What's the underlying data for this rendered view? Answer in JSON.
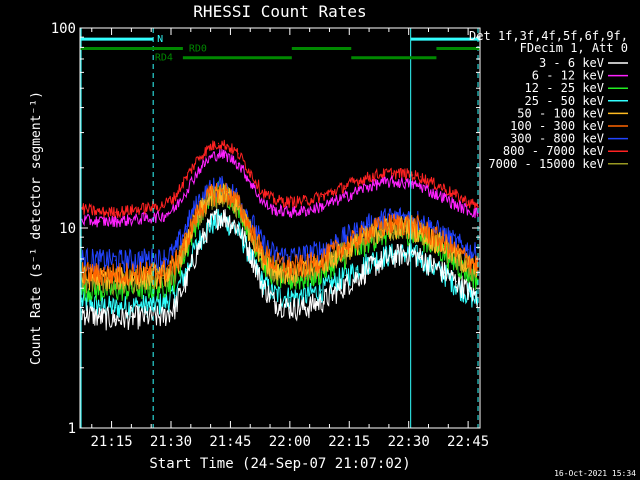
{
  "chart_data": {
    "type": "line",
    "title": "RHESSI Count Rates",
    "xlabel": "Start Time (24-Sep-07 21:07:02)",
    "ylabel": "Count Rate (s⁻¹ detector segment⁻¹)",
    "x_unit": "minutes after 21:00",
    "xlim": [
      7.03,
      108.0
    ],
    "ylim": [
      1,
      100
    ],
    "y_scale": "log",
    "x_ticks": [
      {
        "value": 15,
        "label": "21:15"
      },
      {
        "value": 30,
        "label": "21:30"
      },
      {
        "value": 45,
        "label": "21:45"
      },
      {
        "value": 60,
        "label": "22:00"
      },
      {
        "value": 75,
        "label": "22:15"
      },
      {
        "value": 90,
        "label": "22:30"
      },
      {
        "value": 105,
        "label": "22:45"
      }
    ],
    "y_ticks": [
      {
        "value": 1,
        "label": "1"
      },
      {
        "value": 10,
        "label": "10"
      },
      {
        "value": 100,
        "label": "100"
      }
    ],
    "legend_title": [
      "Det 1f,3f,4f,5f,6f,9f,",
      "FDecim 1, Att 0"
    ],
    "legend_position": "right",
    "footer_timestamp": "16-Oct-2021 15:34",
    "x": [
      7.5,
      12,
      16,
      20,
      24,
      28,
      31,
      34,
      37,
      40,
      42,
      44,
      47,
      50,
      53,
      56,
      60,
      64,
      68,
      71,
      74,
      77,
      80,
      83,
      86,
      89,
      91,
      93,
      96,
      99,
      102,
      105,
      107.5
    ],
    "series": [
      {
        "name": "3 - 6 keV",
        "color": "#ffffff",
        "values": [
          3.8,
          3.6,
          3.5,
          3.6,
          3.6,
          3.6,
          4.0,
          5.5,
          8.0,
          10.5,
          11.5,
          11.3,
          10.0,
          7.5,
          5.2,
          4.3,
          4.0,
          4.0,
          4.3,
          4.7,
          5.2,
          5.7,
          6.3,
          6.8,
          7.2,
          7.5,
          7.4,
          7.1,
          6.5,
          6.0,
          5.4,
          4.9,
          4.5
        ]
      },
      {
        "name": "6 - 12 keV",
        "color": "#ff22ff",
        "values": [
          11.0,
          10.8,
          10.8,
          11.0,
          11.2,
          11.5,
          12.5,
          15.5,
          19.5,
          22.5,
          23.5,
          23.0,
          21.0,
          17.0,
          13.5,
          12.3,
          12.0,
          12.2,
          12.8,
          13.5,
          14.3,
          15.3,
          16.2,
          16.8,
          17.0,
          16.8,
          16.5,
          16.2,
          15.0,
          14.2,
          13.0,
          12.3,
          11.8
        ]
      },
      {
        "name": "12 - 25 keV",
        "color": "#22ee22",
        "values": [
          5.0,
          4.9,
          4.9,
          5.0,
          5.0,
          5.1,
          5.6,
          7.8,
          11.5,
          14.2,
          15.2,
          14.8,
          13.0,
          9.5,
          6.8,
          5.8,
          5.5,
          5.6,
          6.0,
          6.6,
          7.2,
          7.8,
          8.6,
          9.2,
          9.5,
          9.6,
          9.4,
          9.0,
          8.2,
          7.5,
          6.6,
          6.0,
          5.5
        ]
      },
      {
        "name": "25 - 50 keV",
        "color": "#33ffff",
        "values": [
          4.3,
          4.1,
          4.0,
          4.1,
          4.1,
          4.2,
          4.6,
          6.2,
          8.6,
          10.4,
          11.0,
          10.8,
          9.6,
          7.2,
          5.4,
          4.7,
          4.5,
          4.6,
          4.9,
          5.3,
          5.8,
          6.2,
          6.8,
          7.2,
          7.4,
          7.5,
          7.4,
          7.1,
          6.4,
          5.9,
          5.2,
          4.7,
          4.3
        ]
      },
      {
        "name": "50 - 100 keV",
        "color": "#ffbb22",
        "values": [
          5.7,
          5.6,
          5.6,
          5.7,
          5.7,
          5.8,
          6.3,
          8.4,
          11.8,
          14.2,
          15.0,
          14.6,
          12.8,
          9.6,
          7.2,
          6.3,
          6.0,
          6.1,
          6.6,
          7.2,
          7.8,
          8.4,
          9.2,
          9.8,
          10.1,
          10.2,
          10.0,
          9.6,
          8.8,
          8.1,
          7.2,
          6.6,
          6.1
        ]
      },
      {
        "name": "100 - 300 keV",
        "color": "#ff6600",
        "values": [
          6.0,
          5.9,
          5.9,
          6.0,
          6.0,
          6.1,
          6.6,
          8.8,
          12.2,
          14.6,
          15.4,
          15.0,
          13.2,
          10.0,
          7.6,
          6.7,
          6.4,
          6.5,
          7.0,
          7.6,
          8.2,
          8.8,
          9.6,
          10.2,
          10.5,
          10.6,
          10.4,
          10.0,
          9.2,
          8.5,
          7.6,
          7.0,
          6.5
        ]
      },
      {
        "name": "300 - 800 keV",
        "color": "#2244ff",
        "values": [
          7.0,
          6.9,
          6.9,
          6.9,
          7.0,
          7.0,
          7.6,
          10.2,
          13.6,
          15.6,
          16.2,
          15.8,
          14.2,
          11.0,
          8.4,
          7.4,
          7.2,
          7.3,
          7.8,
          8.4,
          9.0,
          9.6,
          10.4,
          11.0,
          11.3,
          11.4,
          11.2,
          10.8,
          10.0,
          9.2,
          8.4,
          7.8,
          7.3
        ]
      },
      {
        "name": "800 - 7000 keV",
        "color": "#ff2222",
        "values": [
          12.5,
          12.0,
          12.0,
          12.3,
          12.6,
          13.0,
          14.3,
          18.0,
          22.5,
          25.5,
          26.5,
          26.0,
          23.5,
          19.0,
          15.2,
          13.8,
          13.5,
          13.7,
          14.4,
          15.2,
          16.2,
          17.2,
          18.0,
          18.6,
          18.8,
          18.7,
          18.4,
          18.0,
          16.8,
          15.8,
          14.5,
          13.5,
          12.8
        ]
      },
      {
        "name": "7000 - 15000 keV",
        "color": "#999922",
        "values": [
          5.5,
          5.4,
          5.4,
          5.5,
          5.5,
          5.6,
          6.1,
          8.2,
          11.6,
          14.0,
          14.8,
          14.4,
          12.6,
          9.4,
          7.0,
          6.1,
          5.8,
          5.9,
          6.4,
          7.0,
          7.6,
          8.2,
          9.0,
          9.6,
          9.9,
          10.0,
          9.8,
          9.4,
          8.6,
          7.9,
          7.0,
          6.4,
          5.9
        ]
      }
    ],
    "series_draw_order": [
      3,
      0,
      2,
      6,
      8,
      4,
      5,
      7,
      1
    ],
    "attenuator_bars": [
      {
        "label": "N",
        "color": "#33ffff",
        "y": 88,
        "segments": [
          [
            7.03,
            25.5
          ],
          [
            90.5,
            108.0
          ]
        ]
      },
      {
        "label": "RD0",
        "color": "#008800",
        "y": 79,
        "segments": [
          [
            7.03,
            33.0
          ],
          [
            60.5,
            75.5
          ],
          [
            97.0,
            108.0
          ]
        ]
      },
      {
        "label": "RD4",
        "color": "#008800",
        "y": 71,
        "segments": [
          [
            33.0,
            60.5
          ],
          [
            75.5,
            97.0
          ]
        ]
      }
    ],
    "vertical_markers": [
      {
        "x": 7.3,
        "style": "solid",
        "color": "#33ffff"
      },
      {
        "x": 25.5,
        "style": "dashed",
        "color": "#33ffff"
      },
      {
        "x": 90.5,
        "style": "solid",
        "color": "#33ffff"
      },
      {
        "x": 107.5,
        "style": "dashed",
        "color": "#33ffff"
      }
    ]
  }
}
